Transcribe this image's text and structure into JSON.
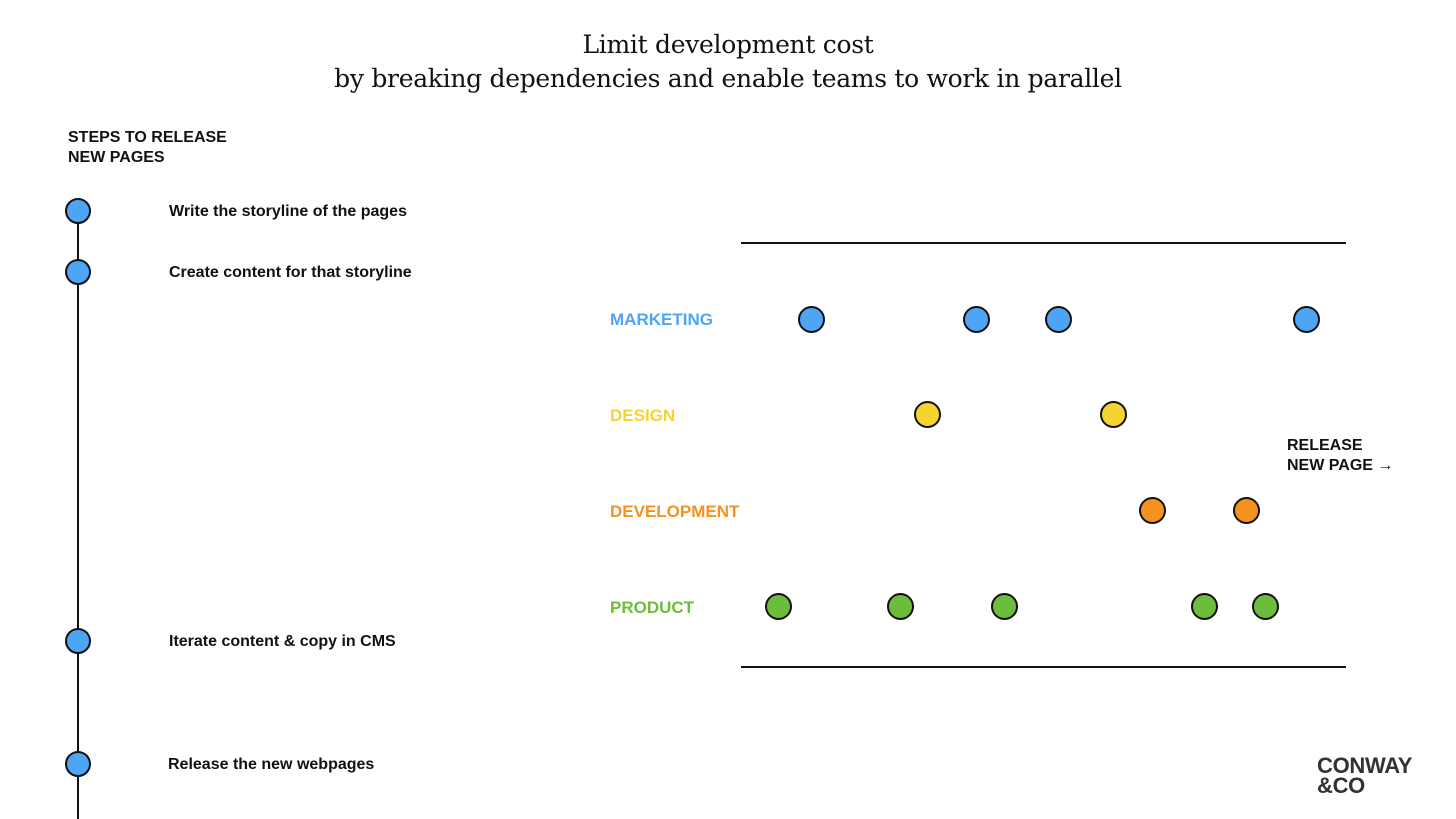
{
  "title": {
    "line1": "Limit development cost",
    "line2": "by breaking dependencies and enable teams to work in parallel"
  },
  "steps_heading": {
    "line1": "STEPS TO RELEASE",
    "line2": "NEW PAGES"
  },
  "steps": [
    {
      "label": "Write the storyline of the pages"
    },
    {
      "label": "Create content for that storyline"
    },
    {
      "label": "Iterate content & copy in CMS"
    },
    {
      "label": "Release the new webpages"
    }
  ],
  "lanes": [
    {
      "label": "MARKETING",
      "color": "#4da6f5",
      "dots": 4
    },
    {
      "label": "DESIGN",
      "color": "#f5d430",
      "dots": 2
    },
    {
      "label": "DEVELOPMENT",
      "color": "#f5921f",
      "dots": 2
    },
    {
      "label": "PRODUCT",
      "color": "#6dbd3c",
      "dots": 5
    }
  ],
  "release": {
    "line1": "RELEASE",
    "line2": "NEW PAGE →"
  },
  "logo": {
    "line1": "CONWAY",
    "line2": "&CO"
  },
  "colors": {
    "step_dot": "#4da6f5",
    "line": "#111111"
  }
}
